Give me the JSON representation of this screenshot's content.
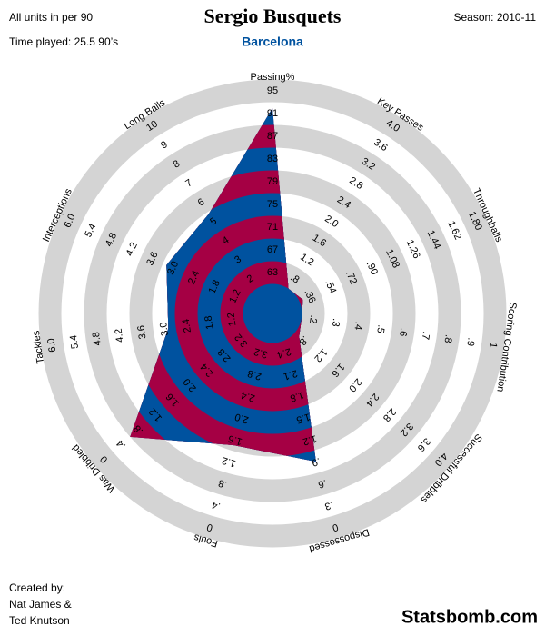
{
  "chart_data": {
    "type": "radar",
    "title": "Sergio Busquets",
    "subtitle": "Barcelona",
    "note_units": "All units in per 90",
    "note_time": "Time played: 25.5 90’s",
    "note_season": "Season: 2010-11",
    "credit": [
      "Created by:",
      "Nat James &",
      "Ted Knutson"
    ],
    "brand": "Statsbomb.com",
    "colors": [
      "#00529f",
      "#a50044"
    ],
    "ring_color": "#d4d4d4",
    "subtitle_color": "#00529f",
    "axes": [
      {
        "label": "Passing%",
        "lim": [
          63,
          95
        ],
        "ticks": [
          63,
          67,
          71,
          75,
          79,
          83,
          87,
          91,
          95
        ]
      },
      {
        "label": "Key Passes",
        "lim": [
          0.8,
          4.0
        ],
        "ticks": [
          {
            "value": 0.8,
            "label": ".8"
          },
          1.2,
          1.6,
          {
            "value": 2.0,
            "label": "2.0"
          },
          2.4,
          2.8,
          3.2,
          3.6,
          {
            "value": 4.0,
            "label": "4.0"
          }
        ]
      },
      {
        "label": "Throughballs",
        "lim": [
          0.36,
          1.8
        ],
        "ticks": [
          {
            "value": 0.36,
            "label": ".36"
          },
          {
            "value": 0.54,
            "label": ".54"
          },
          {
            "value": 0.72,
            "label": ".72"
          },
          {
            "value": 0.9,
            "label": ".90"
          },
          1.08,
          1.26,
          1.44,
          1.62,
          {
            "value": 1.8,
            "label": "1.80"
          }
        ]
      },
      {
        "label": "Scoring Contribution",
        "lim": [
          0.2,
          1
        ],
        "ticks": [
          {
            "value": 0.2,
            "label": ".2"
          },
          {
            "value": 0.3,
            "label": ".3"
          },
          {
            "value": 0.4,
            "label": ".4"
          },
          {
            "value": 0.5,
            "label": ".5"
          },
          {
            "value": 0.6,
            "label": ".6"
          },
          {
            "value": 0.7,
            "label": ".7"
          },
          {
            "value": 0.8,
            "label": ".8"
          },
          {
            "value": 0.9,
            "label": ".9"
          },
          1
        ]
      },
      {
        "label": "Successful Dribbles",
        "lim": [
          0.8,
          4.0
        ],
        "ticks": [
          {
            "value": 0.8,
            "label": ".8"
          },
          1.2,
          1.6,
          {
            "value": 2.0,
            "label": "2.0"
          },
          2.4,
          2.8,
          3.2,
          3.6,
          {
            "value": 4.0,
            "label": "4.0"
          }
        ]
      },
      {
        "label": "Dispossessed",
        "lim": [
          2.4,
          0
        ],
        "ticks": [
          2.4,
          2.1,
          1.8,
          1.5,
          1.2,
          {
            "value": 0.9,
            "label": ".9"
          },
          {
            "value": 0.6,
            "label": ".6"
          },
          {
            "value": 0.3,
            "label": ".3"
          },
          0
        ]
      },
      {
        "label": "Fouls",
        "lim": [
          3.2,
          0
        ],
        "ticks": [
          3.2,
          2.8,
          2.4,
          {
            "value": 2.0,
            "label": "2.0"
          },
          1.6,
          1.2,
          {
            "value": 0.8,
            "label": ".8"
          },
          {
            "value": 0.4,
            "label": ".4"
          },
          0
        ]
      },
      {
        "label": "Was Dribbled",
        "lim": [
          3.2,
          0
        ],
        "ticks": [
          3.2,
          2.8,
          2.4,
          {
            "value": 2.0,
            "label": "2.0"
          },
          1.6,
          1.2,
          {
            "value": 0.8,
            "label": ".8"
          },
          {
            "value": 0.4,
            "label": ".4"
          },
          0
        ]
      },
      {
        "label": "Tackles",
        "lim": [
          1.2,
          6
        ],
        "ticks": [
          1.2,
          1.8,
          2.4,
          {
            "value": 3,
            "label": "3.0"
          },
          3.6,
          4.2,
          4.8,
          5.4,
          {
            "value": 6,
            "label": "6.0"
          }
        ]
      },
      {
        "label": "Interceptions",
        "lim": [
          1.2,
          6
        ],
        "ticks": [
          1.2,
          1.8,
          2.4,
          {
            "value": 3,
            "label": "3.0"
          },
          3.6,
          4.2,
          4.8,
          5.4,
          {
            "value": 6,
            "label": "6.0"
          }
        ]
      },
      {
        "label": "Long Balls",
        "lim": [
          2,
          10
        ],
        "ticks": [
          2,
          3,
          4,
          5,
          6,
          7,
          8,
          9,
          10
        ]
      }
    ],
    "values": [
      92,
      0.6,
      0.3,
      0.15,
      0.7,
      0.9,
      1.5,
      0.6,
      2.9,
      3.2,
      5.4
    ]
  }
}
